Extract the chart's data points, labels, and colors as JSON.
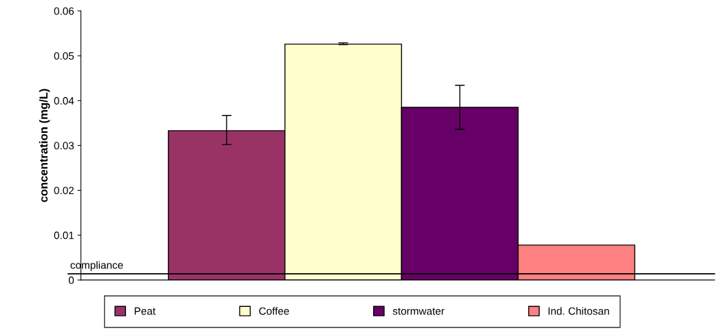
{
  "chart_data": {
    "type": "bar",
    "ylabel": "concentration (mg/L)",
    "categories": [
      null
    ],
    "series": [
      {
        "name": "Peat",
        "color": "#993366",
        "values": [
          0.0333
        ],
        "errors": [
          [
            0.0302,
            0.0367
          ]
        ]
      },
      {
        "name": "Coffee",
        "color": "#ffffcc",
        "values": [
          0.0526
        ],
        "errors": [
          [
            0.0525,
            0.0529
          ]
        ]
      },
      {
        "name": "stormwater",
        "color": "#660066",
        "values": [
          0.0385
        ],
        "errors": [
          [
            0.0336,
            0.0434
          ]
        ]
      },
      {
        "name": "Ind. Chitosan",
        "color": "#ff8080",
        "values": [
          0.0078
        ]
      }
    ],
    "ylim": [
      0,
      0.06
    ],
    "yticks": [
      0,
      0.01,
      0.02,
      0.03,
      0.04,
      0.05,
      0.06
    ],
    "ref_lines": [
      {
        "axis": "y",
        "value": 0.0014,
        "label": "compliance",
        "color": "#000000"
      }
    ],
    "grid": false,
    "legend": "bottom"
  }
}
